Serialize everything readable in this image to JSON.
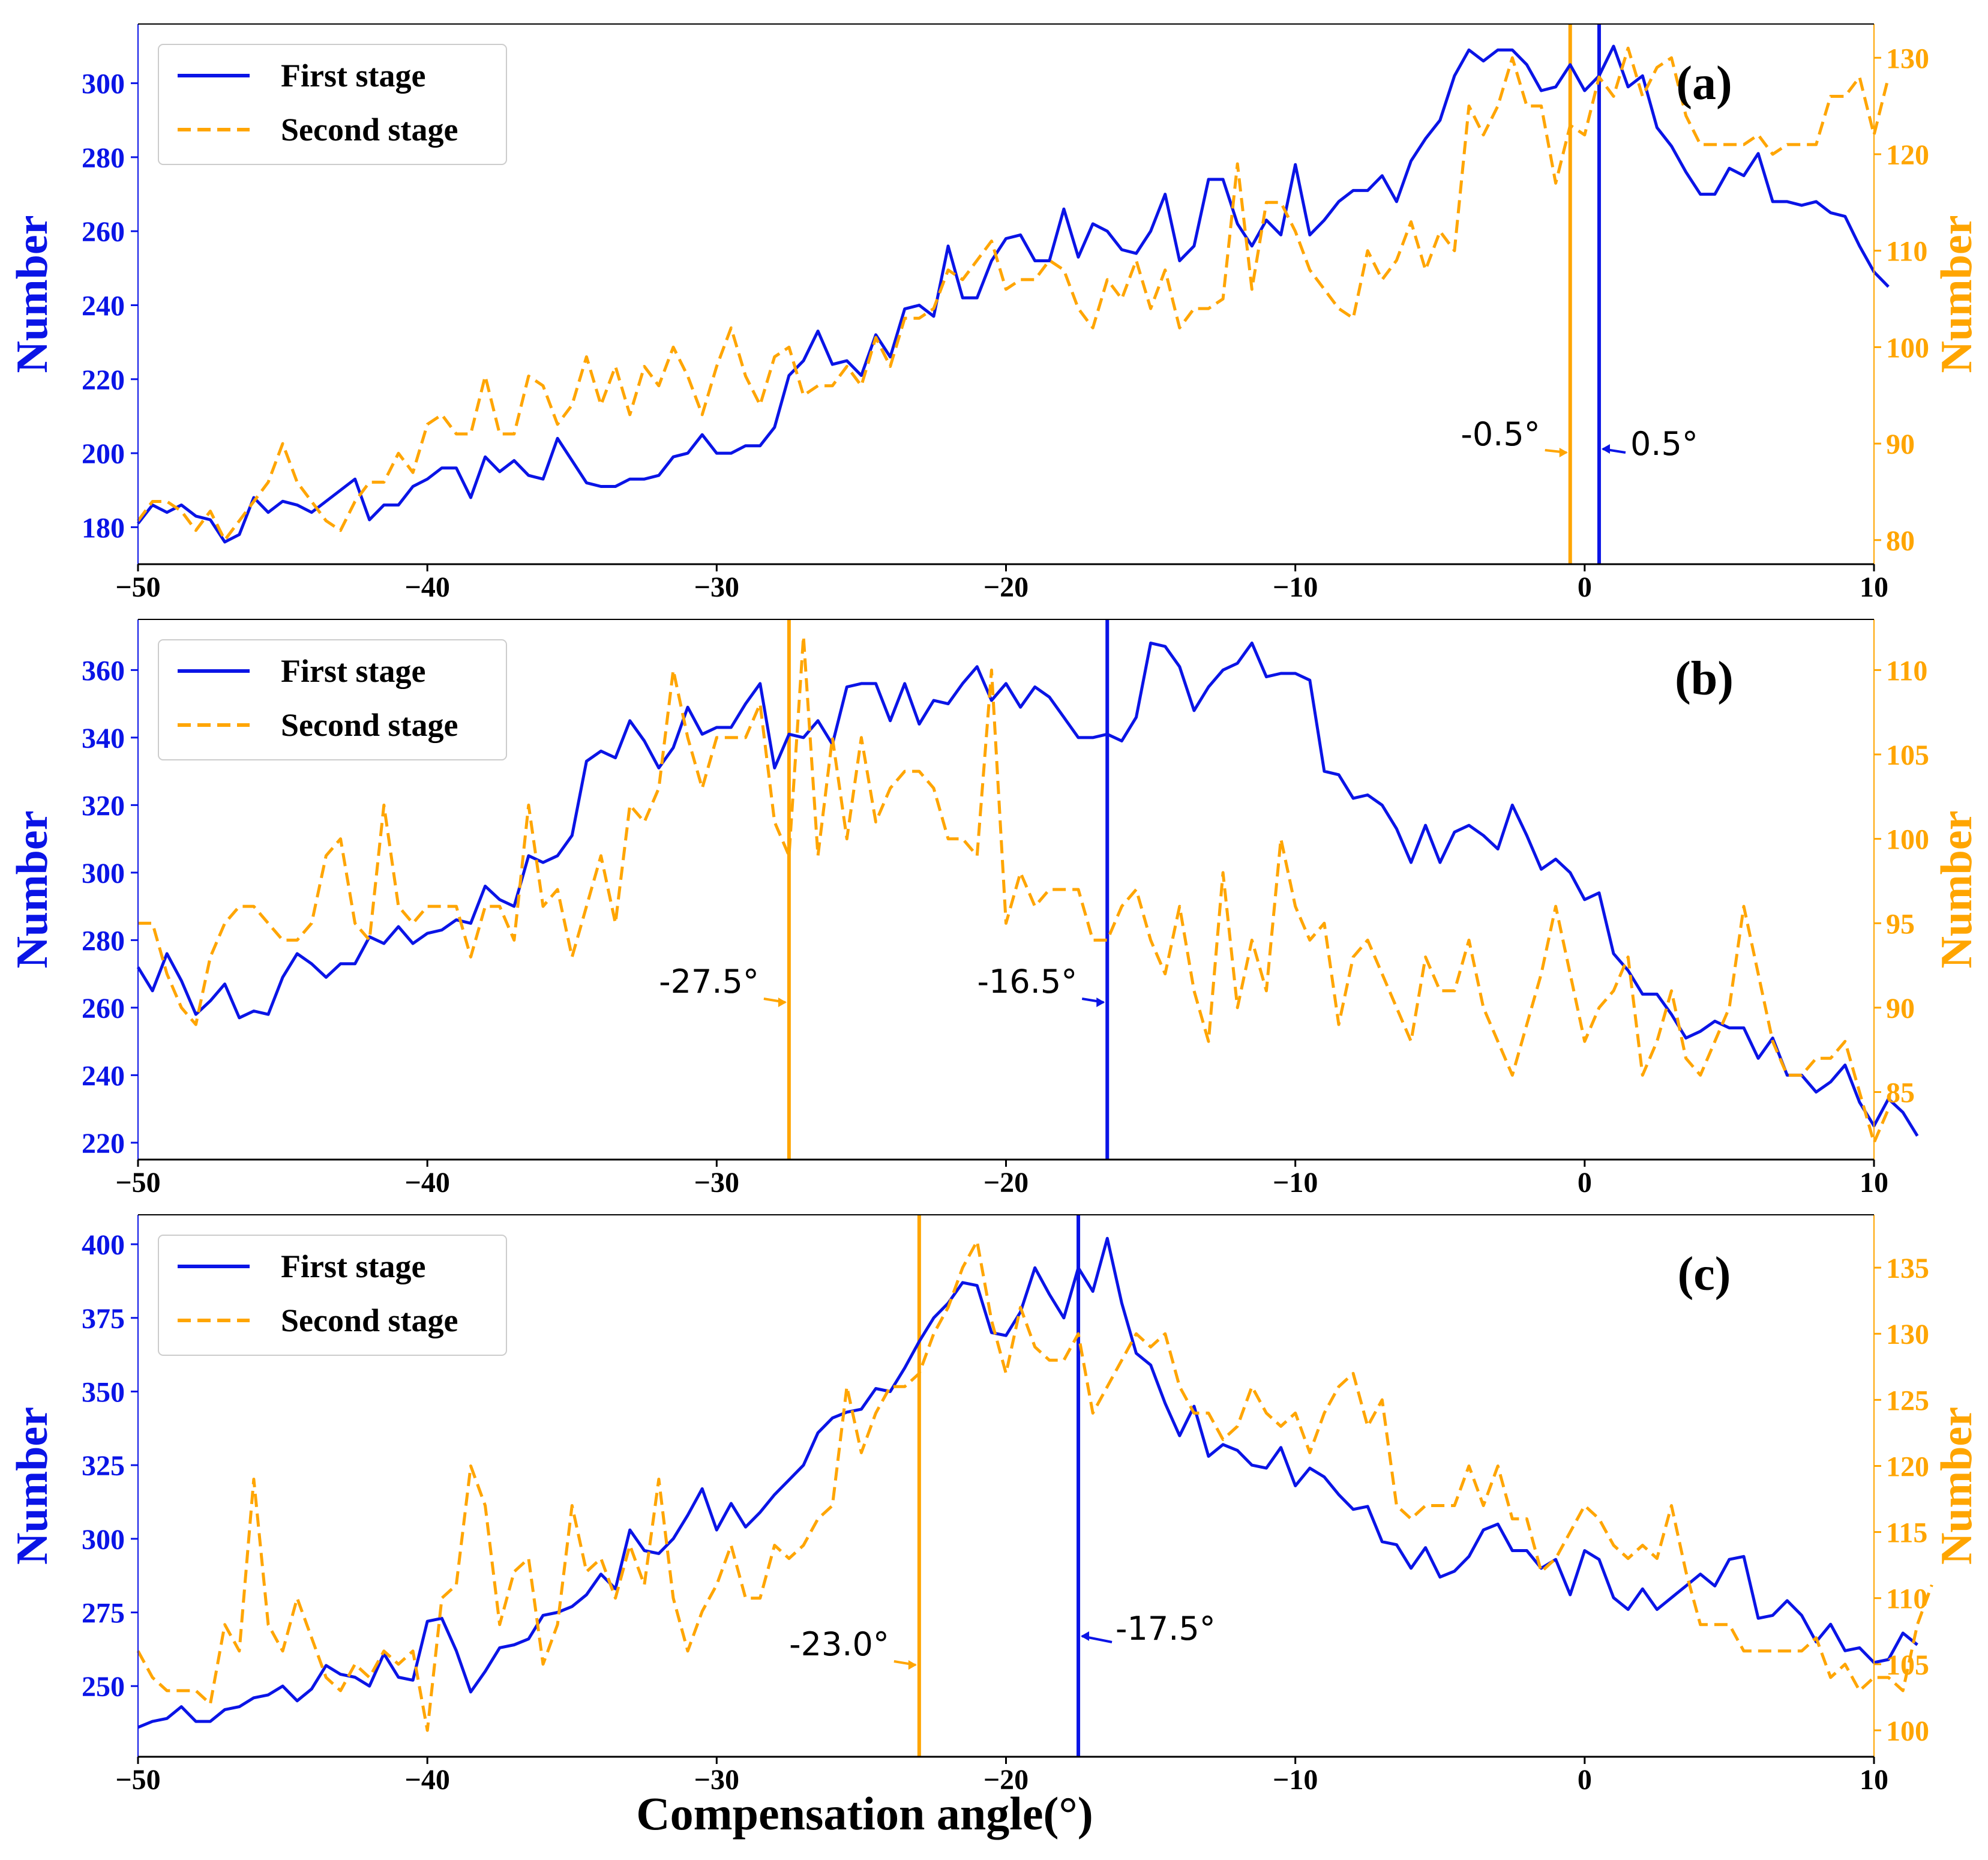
{
  "colors": {
    "first": "#0a14e6",
    "second": "#ffa500",
    "axis": "#000000"
  },
  "xaxis": {
    "label": "Compensation angle(°)",
    "ticks": [
      -50,
      -40,
      -30,
      -20,
      -10,
      0,
      10
    ],
    "tick_labels": [
      "−50",
      "−40",
      "−30",
      "−20",
      "−10",
      "0",
      "10"
    ],
    "range": [
      -50,
      10
    ]
  },
  "legend": {
    "first": "First stage",
    "second": "Second stage"
  },
  "chart_data": [
    {
      "type": "line",
      "panel": "(a)",
      "x_start": -50,
      "x_step": 0.5,
      "ylim_left": [
        170,
        316
      ],
      "yticks_left": [
        180,
        200,
        220,
        240,
        260,
        280,
        300
      ],
      "ylabel_left": "Number",
      "ylim_right": [
        77.5,
        133.5
      ],
      "yticks_right": [
        80,
        90,
        100,
        110,
        120,
        130
      ],
      "ylabel_right": "Number",
      "series": [
        {
          "name": "First stage",
          "axis": "left",
          "values": [
            181,
            186,
            184,
            186,
            183,
            182,
            176,
            178,
            188,
            184,
            187,
            186,
            184,
            187,
            190,
            193,
            182,
            186,
            186,
            191,
            193,
            196,
            196,
            188,
            199,
            195,
            198,
            194,
            193,
            204,
            198,
            192,
            191,
            191,
            193,
            193,
            194,
            199,
            200,
            205,
            200,
            200,
            202,
            202,
            207,
            221,
            225,
            233,
            224,
            225,
            221,
            232,
            226,
            239,
            240,
            237,
            256,
            242,
            242,
            252,
            258,
            259,
            252,
            252,
            266,
            253,
            262,
            260,
            255,
            254,
            260,
            270,
            252,
            256,
            274,
            274,
            262,
            256,
            263,
            259,
            278,
            259,
            263,
            268,
            271,
            271,
            275,
            268,
            279,
            285,
            290,
            302,
            309,
            306,
            309,
            309,
            305,
            298,
            299,
            305,
            298,
            302,
            310,
            299,
            302,
            288,
            283,
            276,
            270,
            270,
            277,
            275,
            281,
            268,
            268,
            267,
            268,
            265,
            264,
            256,
            249,
            245
          ]
        },
        {
          "name": "Second stage",
          "axis": "right",
          "values": [
            82,
            84,
            84,
            83,
            81,
            83,
            80,
            82,
            84,
            86,
            90,
            86,
            84,
            82,
            81,
            84,
            86,
            86,
            89,
            87,
            92,
            93,
            91,
            91,
            97,
            91,
            91,
            97,
            96,
            92,
            94,
            99,
            94,
            98,
            93,
            98,
            96,
            100,
            97,
            93,
            98,
            102,
            97,
            94,
            99,
            100,
            95,
            96,
            96,
            98,
            96,
            101,
            98,
            103,
            103,
            104,
            108,
            107,
            109,
            111,
            106,
            107,
            107,
            109,
            108,
            104,
            102,
            107,
            105,
            109,
            104,
            108,
            102,
            104,
            104,
            105,
            119,
            106,
            115,
            115,
            112,
            108,
            106,
            104,
            103,
            110,
            107,
            109,
            113,
            108,
            112,
            110,
            125,
            122,
            125,
            130,
            125,
            125,
            117,
            123,
            122,
            128,
            126,
            131,
            126,
            129,
            130,
            124,
            121,
            121,
            121,
            121,
            122,
            120,
            121,
            121,
            121,
            126,
            126,
            128,
            122,
            128
          ],
          "values_note": ""
        }
      ],
      "vlines": [
        {
          "name": "second-peak",
          "x": -0.5,
          "label": "-0.5°",
          "color": "second"
        },
        {
          "name": "first-peak",
          "x": 0.5,
          "label": "0.5°",
          "color": "first"
        }
      ]
    },
    {
      "type": "line",
      "panel": "(b)",
      "x_start": -50,
      "x_step": 0.5,
      "ylim_left": [
        215,
        375
      ],
      "yticks_left": [
        220,
        240,
        260,
        280,
        300,
        320,
        340,
        360
      ],
      "ylabel_left": "Number",
      "ylim_right": [
        81,
        113
      ],
      "yticks_right": [
        85,
        90,
        95,
        100,
        105,
        110
      ],
      "ylabel_right": "Number",
      "series": [
        {
          "name": "First stage",
          "axis": "left",
          "values": [
            272,
            265,
            276,
            268,
            258,
            262,
            267,
            257,
            259,
            258,
            269,
            276,
            273,
            269,
            273,
            273,
            281,
            279,
            284,
            279,
            282,
            283,
            286,
            285,
            296,
            292,
            290,
            305,
            303,
            305,
            311,
            333,
            336,
            334,
            345,
            339,
            331,
            337,
            349,
            341,
            343,
            343,
            350,
            356,
            331,
            341,
            340,
            345,
            338,
            355,
            356,
            356,
            345,
            356,
            344,
            351,
            350,
            356,
            361,
            351,
            356,
            349,
            355,
            352,
            346,
            340,
            340,
            341,
            339,
            346,
            368,
            367,
            361,
            348,
            355,
            360,
            362,
            368,
            358,
            359,
            359,
            357,
            330,
            329,
            322,
            323,
            320,
            313,
            303,
            314,
            303,
            312,
            314,
            311,
            307,
            320,
            311,
            301,
            304,
            300,
            292,
            294,
            276,
            271,
            264,
            264,
            258,
            251,
            253,
            256,
            254,
            254,
            245,
            251,
            240,
            240,
            235,
            238,
            243,
            232,
            225,
            233,
            229,
            222
          ]
        },
        {
          "name": "Second stage",
          "axis": "right",
          "values": [
            95,
            95,
            92,
            90,
            89,
            93,
            95,
            96,
            96,
            95,
            94,
            94,
            95,
            99,
            100,
            95,
            94,
            102,
            96,
            95,
            96,
            96,
            96,
            93,
            96,
            96,
            94,
            102,
            96,
            97,
            93,
            96,
            99,
            95,
            102,
            101,
            103,
            110,
            106,
            103,
            106,
            106,
            106,
            108,
            101,
            99,
            112,
            99,
            106,
            100,
            106,
            101,
            103,
            104,
            104,
            103,
            100,
            100,
            99,
            110,
            95,
            98,
            96,
            97,
            97,
            97,
            94,
            94,
            96,
            97,
            94,
            92,
            96,
            91,
            88,
            98,
            90,
            94,
            91,
            100,
            96,
            94,
            95,
            89,
            93,
            94,
            92,
            90,
            88,
            93,
            91,
            91,
            94,
            90,
            88,
            86,
            89,
            92,
            96,
            92,
            88,
            90,
            91,
            93,
            86,
            88,
            91,
            87,
            86,
            88,
            90,
            96,
            92,
            88,
            86,
            86,
            87,
            87,
            88,
            85,
            82,
            84
          ]
        }
      ],
      "vlines": [
        {
          "name": "second-peak",
          "x": -27.5,
          "label": "-27.5°",
          "color": "second"
        },
        {
          "name": "first-peak",
          "x": -16.5,
          "label": "-16.5°",
          "color": "first"
        }
      ]
    },
    {
      "type": "line",
      "panel": "(c)",
      "x_start": -50,
      "x_step": 0.5,
      "ylim_left": [
        226,
        410
      ],
      "yticks_left": [
        250,
        275,
        300,
        325,
        350,
        375,
        400
      ],
      "ylabel_left": "Number",
      "ylim_right": [
        98,
        139
      ],
      "yticks_right": [
        100,
        105,
        110,
        115,
        120,
        125,
        130,
        135
      ],
      "ylabel_right": "Number",
      "series": [
        {
          "name": "First stage",
          "axis": "left",
          "values": [
            236,
            238,
            239,
            243,
            238,
            238,
            242,
            243,
            246,
            247,
            250,
            245,
            249,
            257,
            254,
            253,
            250,
            261,
            253,
            252,
            272,
            273,
            262,
            248,
            255,
            263,
            264,
            266,
            274,
            275,
            277,
            281,
            288,
            283,
            303,
            296,
            295,
            300,
            308,
            317,
            303,
            312,
            304,
            309,
            315,
            320,
            325,
            336,
            341,
            343,
            344,
            351,
            350,
            358,
            367,
            375,
            380,
            387,
            386,
            370,
            369,
            377,
            392,
            383,
            375,
            392,
            384,
            402,
            380,
            363,
            359,
            346,
            335,
            345,
            328,
            332,
            330,
            325,
            324,
            331,
            318,
            324,
            321,
            315,
            310,
            311,
            299,
            298,
            290,
            297,
            287,
            289,
            294,
            303,
            305,
            296,
            296,
            290,
            293,
            281,
            296,
            293,
            280,
            276,
            283,
            276,
            280,
            284,
            288,
            284,
            293,
            294,
            273,
            274,
            279,
            274,
            265,
            271,
            262,
            263,
            258,
            259,
            268,
            264
          ]
        },
        {
          "name": "Second stage",
          "axis": "right",
          "values": [
            106,
            104,
            103,
            103,
            103,
            102,
            108,
            106,
            119,
            108,
            106,
            110,
            107,
            104,
            103,
            105,
            104,
            106,
            105,
            106,
            100,
            110,
            111,
            120,
            117,
            108,
            112,
            113,
            105,
            108,
            117,
            112,
            113,
            110,
            114,
            111,
            119,
            110,
            106,
            109,
            111,
            114,
            110,
            110,
            114,
            113,
            114,
            116,
            117,
            126,
            121,
            124,
            126,
            126,
            127,
            130,
            132,
            135,
            137,
            131,
            127,
            132,
            129,
            128,
            128,
            130,
            124,
            126,
            128,
            130,
            129,
            130,
            126,
            124,
            124,
            122,
            123,
            126,
            124,
            123,
            124,
            121,
            124,
            126,
            127,
            123,
            125,
            117,
            116,
            117,
            117,
            117,
            120,
            117,
            120,
            116,
            116,
            112,
            113,
            115,
            117,
            116,
            114,
            113,
            114,
            113,
            117,
            112,
            108,
            108,
            108,
            106,
            106,
            106,
            106,
            106,
            107,
            104,
            105,
            103,
            104,
            104,
            103,
            108,
            111
          ]
        }
      ],
      "vlines": [
        {
          "name": "second-peak",
          "x": -23.0,
          "label": "-23.0°",
          "color": "second"
        },
        {
          "name": "first-peak",
          "x": -17.5,
          "label": "-17.5°",
          "color": "first"
        }
      ]
    }
  ]
}
